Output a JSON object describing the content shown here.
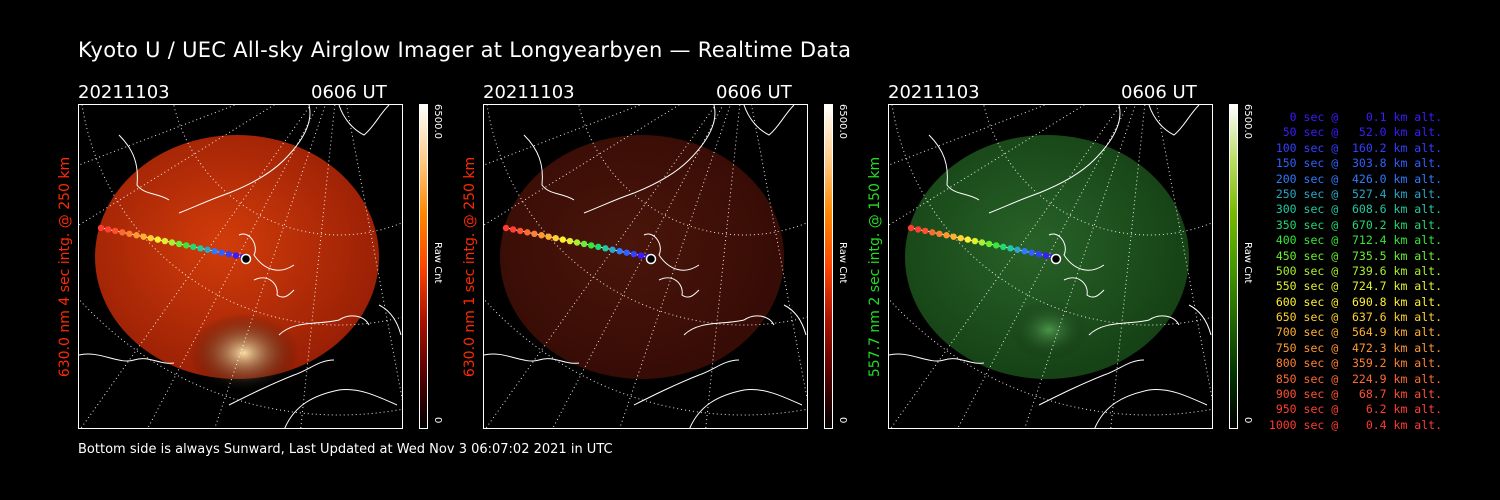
{
  "title": "Kyoto U / UEC All-sky Airglow Imager at Longyearbyen — Realtime Data",
  "footer": "Bottom side is always Sunward, Last Updated at Wed Nov  3 06:07:02 2021 in UTC",
  "panels": [
    {
      "date": "20211103",
      "time": "0606 UT",
      "ylabel": "630.0 nm 4 sec intg. @ 250 km",
      "label_color": "#ff2a00",
      "cb_max": "6500.0",
      "cb_unit": "Raw Cnt",
      "cb_min": "0",
      "colormap": "red",
      "brightness": 1.0
    },
    {
      "date": "20211103",
      "time": "0606 UT",
      "ylabel": "630.0 nm 1 sec intg. @ 250 km",
      "label_color": "#ff2a00",
      "cb_max": "6500.0",
      "cb_unit": "Raw Cnt",
      "cb_min": "0",
      "colormap": "red",
      "brightness": 0.35
    },
    {
      "date": "20211103",
      "time": "0606 UT",
      "ylabel": "557.7 nm 2 sec intg. @ 150 km",
      "label_color": "#22dd22",
      "cb_max": "6500.0",
      "cb_unit": "Raw Cnt",
      "cb_min": "0",
      "colormap": "green",
      "brightness": 0.7
    }
  ],
  "legend": [
    {
      "text": "   0 sec @    0.1 km alt.",
      "color": "#3a1dff"
    },
    {
      "text": "  50 sec @   52.0 km alt.",
      "color": "#3a1dff"
    },
    {
      "text": " 100 sec @  160.2 km alt.",
      "color": "#3340ff"
    },
    {
      "text": " 150 sec @  303.8 km alt.",
      "color": "#3060ff"
    },
    {
      "text": " 200 sec @  426.0 km alt.",
      "color": "#2f7bff"
    },
    {
      "text": " 250 sec @  527.4 km alt.",
      "color": "#2aa7c8"
    },
    {
      "text": " 300 sec @  608.6 km alt.",
      "color": "#22c8a0"
    },
    {
      "text": " 350 sec @  670.2 km alt.",
      "color": "#22d870"
    },
    {
      "text": " 400 sec @  712.4 km alt.",
      "color": "#36e836"
    },
    {
      "text": " 450 sec @  735.5 km alt.",
      "color": "#6af030"
    },
    {
      "text": " 500 sec @  739.6 km alt.",
      "color": "#a8f030"
    },
    {
      "text": " 550 sec @  724.7 km alt.",
      "color": "#e0f030"
    },
    {
      "text": " 600 sec @  690.8 km alt.",
      "color": "#fff030"
    },
    {
      "text": " 650 sec @  637.6 km alt.",
      "color": "#ffd030"
    },
    {
      "text": " 700 sec @  564.9 km alt.",
      "color": "#ffb030"
    },
    {
      "text": " 750 sec @  472.3 km alt.",
      "color": "#ff9830"
    },
    {
      "text": " 800 sec @  359.2 km alt.",
      "color": "#ff8030"
    },
    {
      "text": " 850 sec @  224.9 km alt.",
      "color": "#ff6a30"
    },
    {
      "text": " 900 sec @   68.7 km alt.",
      "color": "#ff5030"
    },
    {
      "text": " 950 sec @    6.2 km alt.",
      "color": "#ff4030"
    },
    {
      "text": "1000 sec @    0.4 km alt.",
      "color": "#ff3a30"
    }
  ]
}
